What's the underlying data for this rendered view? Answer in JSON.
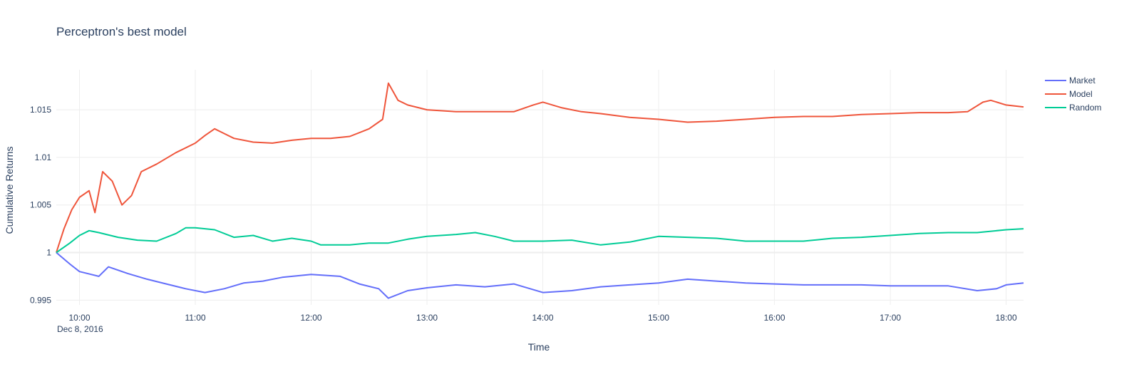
{
  "chart_data": {
    "type": "line",
    "title": "Perceptron's best model",
    "xlabel": "Time",
    "ylabel": "Cumulative Returns",
    "date_label": "Dec 8, 2016",
    "x_ticks": [
      "10:00",
      "11:00",
      "12:00",
      "13:00",
      "14:00",
      "15:00",
      "16:00",
      "17:00",
      "18:00"
    ],
    "y_ticks": [
      "0.995",
      "1",
      "1.005",
      "1.01",
      "1.015"
    ],
    "ylim": [
      0.9945,
      1.0192
    ],
    "xlim": [
      "09:48",
      "18:09"
    ],
    "grid": true,
    "legend_position": "top-right",
    "series": [
      {
        "name": "Market",
        "color": "#636efa",
        "points": [
          [
            "09:48",
            1.0
          ],
          [
            "09:55",
            0.9988
          ],
          [
            "10:00",
            0.998
          ],
          [
            "10:10",
            0.9975
          ],
          [
            "10:15",
            0.9985
          ],
          [
            "10:25",
            0.9978
          ],
          [
            "10:35",
            0.9972
          ],
          [
            "10:45",
            0.9967
          ],
          [
            "10:55",
            0.9962
          ],
          [
            "11:05",
            0.9958
          ],
          [
            "11:15",
            0.9962
          ],
          [
            "11:25",
            0.9968
          ],
          [
            "11:35",
            0.997
          ],
          [
            "11:45",
            0.9974
          ],
          [
            "12:00",
            0.9977
          ],
          [
            "12:15",
            0.9975
          ],
          [
            "12:25",
            0.9967
          ],
          [
            "12:35",
            0.9962
          ],
          [
            "12:40",
            0.9952
          ],
          [
            "12:50",
            0.996
          ],
          [
            "13:00",
            0.9963
          ],
          [
            "13:15",
            0.9966
          ],
          [
            "13:30",
            0.9964
          ],
          [
            "13:45",
            0.9967
          ],
          [
            "14:00",
            0.9958
          ],
          [
            "14:15",
            0.996
          ],
          [
            "14:30",
            0.9964
          ],
          [
            "14:45",
            0.9966
          ],
          [
            "15:00",
            0.9968
          ],
          [
            "15:15",
            0.9972
          ],
          [
            "15:30",
            0.997
          ],
          [
            "15:45",
            0.9968
          ],
          [
            "16:00",
            0.9967
          ],
          [
            "16:15",
            0.9966
          ],
          [
            "16:30",
            0.9966
          ],
          [
            "16:45",
            0.9966
          ],
          [
            "17:00",
            0.9965
          ],
          [
            "17:15",
            0.9965
          ],
          [
            "17:30",
            0.9965
          ],
          [
            "17:45",
            0.996
          ],
          [
            "17:55",
            0.9962
          ],
          [
            "18:00",
            0.9966
          ],
          [
            "18:09",
            0.9968
          ]
        ]
      },
      {
        "name": "Model",
        "color": "#ef553b",
        "points": [
          [
            "09:48",
            1.0
          ],
          [
            "09:52",
            1.0025
          ],
          [
            "09:56",
            1.0045
          ],
          [
            "10:00",
            1.0058
          ],
          [
            "10:05",
            1.0065
          ],
          [
            "10:08",
            1.0042
          ],
          [
            "10:12",
            1.0085
          ],
          [
            "10:17",
            1.0075
          ],
          [
            "10:22",
            1.005
          ],
          [
            "10:27",
            1.006
          ],
          [
            "10:32",
            1.0085
          ],
          [
            "10:40",
            1.0093
          ],
          [
            "10:50",
            1.0105
          ],
          [
            "11:00",
            1.0115
          ],
          [
            "11:05",
            1.0123
          ],
          [
            "11:10",
            1.013
          ],
          [
            "11:15",
            1.0125
          ],
          [
            "11:20",
            1.012
          ],
          [
            "11:30",
            1.0116
          ],
          [
            "11:40",
            1.0115
          ],
          [
            "11:50",
            1.0118
          ],
          [
            "12:00",
            1.012
          ],
          [
            "12:10",
            1.012
          ],
          [
            "12:20",
            1.0122
          ],
          [
            "12:30",
            1.013
          ],
          [
            "12:37",
            1.014
          ],
          [
            "12:40",
            1.0178
          ],
          [
            "12:45",
            1.016
          ],
          [
            "12:50",
            1.0155
          ],
          [
            "13:00",
            1.015
          ],
          [
            "13:15",
            1.0148
          ],
          [
            "13:30",
            1.0148
          ],
          [
            "13:45",
            1.0148
          ],
          [
            "13:55",
            1.0155
          ],
          [
            "14:00",
            1.0158
          ],
          [
            "14:10",
            1.0152
          ],
          [
            "14:20",
            1.0148
          ],
          [
            "14:30",
            1.0146
          ],
          [
            "14:45",
            1.0142
          ],
          [
            "15:00",
            1.014
          ],
          [
            "15:15",
            1.0137
          ],
          [
            "15:30",
            1.0138
          ],
          [
            "15:45",
            1.014
          ],
          [
            "16:00",
            1.0142
          ],
          [
            "16:15",
            1.0143
          ],
          [
            "16:30",
            1.0143
          ],
          [
            "16:45",
            1.0145
          ],
          [
            "17:00",
            1.0146
          ],
          [
            "17:15",
            1.0147
          ],
          [
            "17:30",
            1.0147
          ],
          [
            "17:40",
            1.0148
          ],
          [
            "17:48",
            1.0158
          ],
          [
            "17:52",
            1.016
          ],
          [
            "18:00",
            1.0155
          ],
          [
            "18:09",
            1.0153
          ]
        ]
      },
      {
        "name": "Random",
        "color": "#00cc96",
        "points": [
          [
            "09:48",
            1.0
          ],
          [
            "09:55",
            1.001
          ],
          [
            "10:00",
            1.0018
          ],
          [
            "10:05",
            1.0023
          ],
          [
            "10:10",
            1.0021
          ],
          [
            "10:20",
            1.0016
          ],
          [
            "10:30",
            1.0013
          ],
          [
            "10:40",
            1.0012
          ],
          [
            "10:50",
            1.002
          ],
          [
            "10:55",
            1.0026
          ],
          [
            "11:00",
            1.0026
          ],
          [
            "11:10",
            1.0024
          ],
          [
            "11:20",
            1.0016
          ],
          [
            "11:30",
            1.0018
          ],
          [
            "11:40",
            1.0012
          ],
          [
            "11:50",
            1.0015
          ],
          [
            "12:00",
            1.0012
          ],
          [
            "12:05",
            1.0008
          ],
          [
            "12:20",
            1.0008
          ],
          [
            "12:30",
            1.001
          ],
          [
            "12:40",
            1.001
          ],
          [
            "12:50",
            1.0014
          ],
          [
            "13:00",
            1.0017
          ],
          [
            "13:15",
            1.0019
          ],
          [
            "13:25",
            1.0021
          ],
          [
            "13:35",
            1.0017
          ],
          [
            "13:45",
            1.0012
          ],
          [
            "14:00",
            1.0012
          ],
          [
            "14:15",
            1.0013
          ],
          [
            "14:30",
            1.0008
          ],
          [
            "14:45",
            1.0011
          ],
          [
            "15:00",
            1.0017
          ],
          [
            "15:15",
            1.0016
          ],
          [
            "15:30",
            1.0015
          ],
          [
            "15:45",
            1.0012
          ],
          [
            "16:00",
            1.0012
          ],
          [
            "16:15",
            1.0012
          ],
          [
            "16:30",
            1.0015
          ],
          [
            "16:45",
            1.0016
          ],
          [
            "17:00",
            1.0018
          ],
          [
            "17:15",
            1.002
          ],
          [
            "17:30",
            1.0021
          ],
          [
            "17:45",
            1.0021
          ],
          [
            "18:00",
            1.0024
          ],
          [
            "18:09",
            1.0025
          ]
        ]
      }
    ]
  }
}
